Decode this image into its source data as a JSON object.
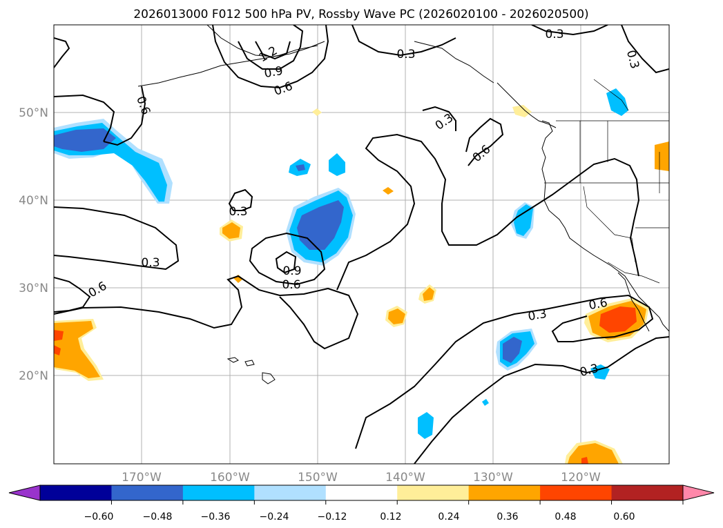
{
  "map": {
    "title": "2026013000 F012 500 hPa PV, Rossby Wave PC (2026020100 - 2026020500)",
    "lon_labels": [
      "170°W",
      "160°W",
      "150°W",
      "140°W",
      "130°W",
      "120°W"
    ],
    "lat_labels": [
      "50°N",
      "40°N",
      "30°N",
      "20°N"
    ],
    "contour_labels": [
      "0.3",
      "0.3",
      "0.3",
      "0.3",
      "0.3",
      "0.3",
      "0.3",
      "0.6",
      "0.6",
      "0.6",
      "0.6",
      "0.6",
      "0.6",
      "0.9",
      "0.9",
      "1.2",
      "0.3"
    ],
    "colorbar": {
      "colors": [
        "#9933cc",
        "#000099",
        "#3366cc",
        "#00bfff",
        "#b0e0ff",
        "#ffffff",
        "#ffee99",
        "#ffa500",
        "#ff4500",
        "#b22222",
        "#ff88aa"
      ],
      "tick_labels": [
        "−0.60",
        "−0.48",
        "−0.36",
        "−0.24",
        "−0.12",
        "0.12",
        "0.24",
        "0.36",
        "0.48",
        "0.60"
      ]
    }
  }
}
